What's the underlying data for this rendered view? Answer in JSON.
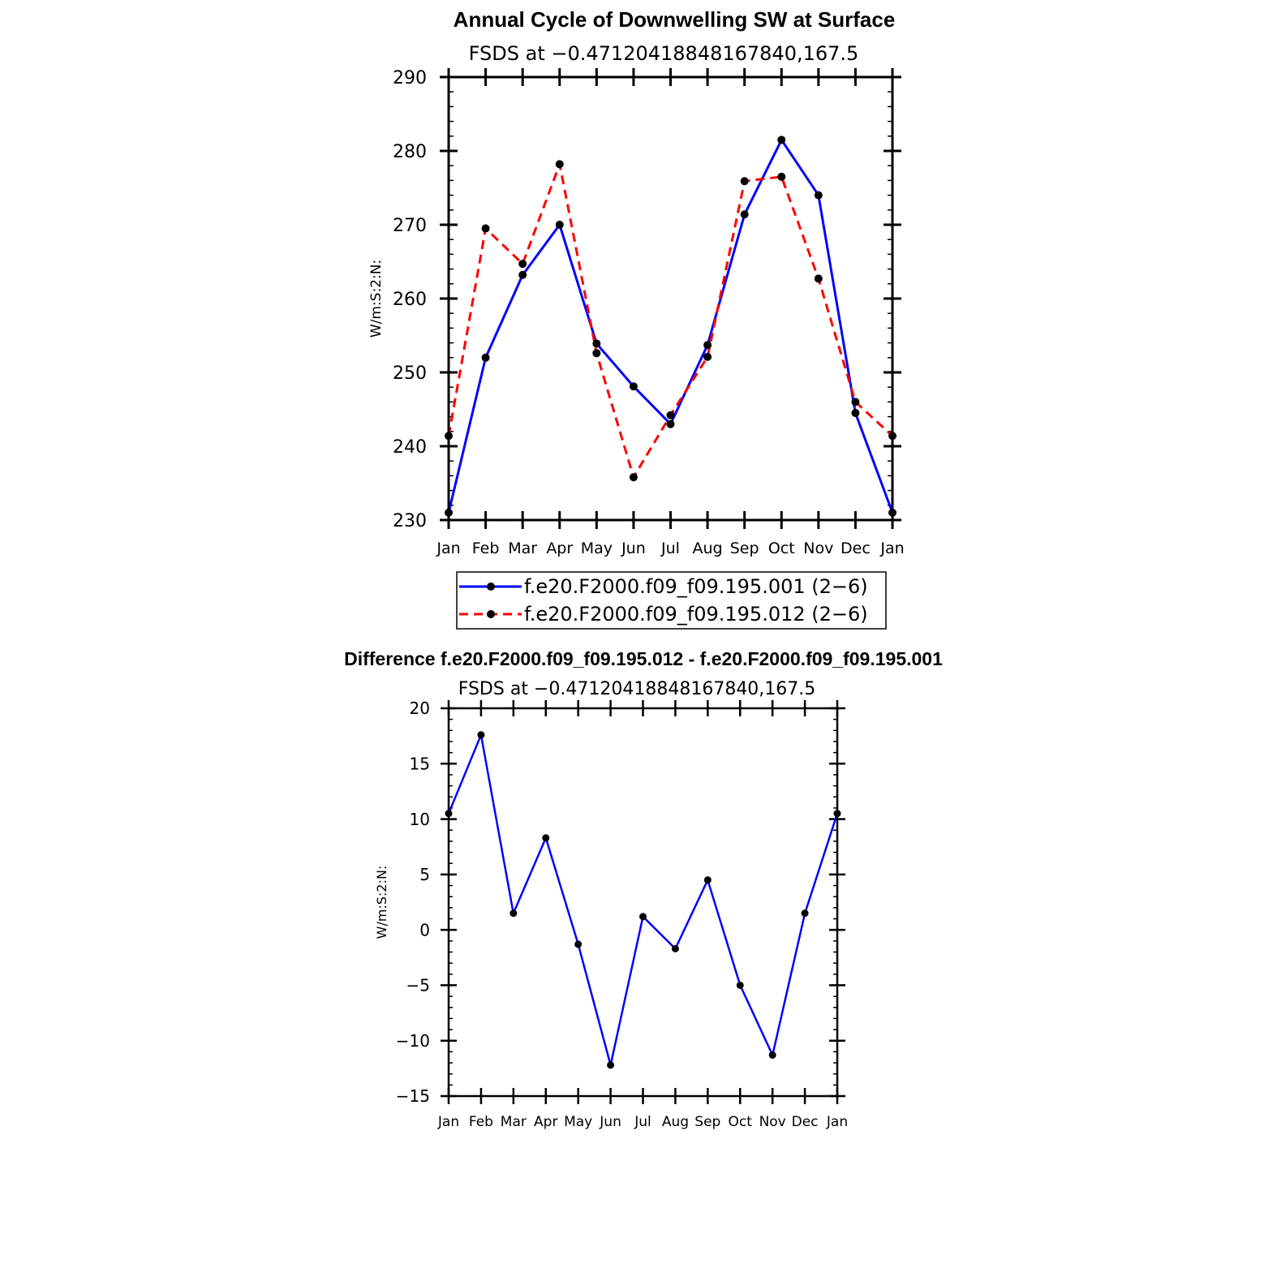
{
  "chart_data": [
    {
      "type": "line",
      "title": "Annual Cycle of Downwelling SW at Surface",
      "subtitle": "FSDS at −0.47120418848167840,167.5",
      "ylabel": "W/m:S:2:N:",
      "categories": [
        "Jan",
        "Feb",
        "Mar",
        "Apr",
        "May",
        "Jun",
        "Jul",
        "Aug",
        "Sep",
        "Oct",
        "Nov",
        "Dec",
        "Jan"
      ],
      "ylim": [
        230,
        290
      ],
      "yticks": [
        "230",
        "240",
        "250",
        "260",
        "270",
        "280",
        "290"
      ],
      "legend_position": "bottom",
      "series": [
        {
          "name": "f.e20.F2000.f09_f09.195.001 (2−6)",
          "color": "#0000ff",
          "dash": "solid",
          "values": [
            231.0,
            252.0,
            263.2,
            270.0,
            253.9,
            248.1,
            243.0,
            253.7,
            271.4,
            281.5,
            274.0,
            244.5,
            231.0
          ]
        },
        {
          "name": "f.e20.F2000.f09_f09.195.012 (2−6)",
          "color": "#ff0000",
          "dash": "dashed",
          "values": [
            241.4,
            269.5,
            264.7,
            278.2,
            252.6,
            235.8,
            244.2,
            252.1,
            275.9,
            276.5,
            262.7,
            246.0,
            241.4
          ]
        }
      ]
    },
    {
      "type": "line",
      "title": "Difference f.e20.F2000.f09_f09.195.012 - f.e20.F2000.f09_f09.195.001",
      "subtitle": "FSDS at −0.47120418848167840,167.5",
      "ylabel": "W/m:S:2:N:",
      "categories": [
        "Jan",
        "Feb",
        "Mar",
        "Apr",
        "May",
        "Jun",
        "Jul",
        "Aug",
        "Sep",
        "Oct",
        "Nov",
        "Dec",
        "Jan"
      ],
      "ylim": [
        -15,
        20
      ],
      "yticks": [
        "−15",
        "−10",
        "−5",
        "0",
        "5",
        "10",
        "15",
        "20"
      ],
      "series": [
        {
          "color": "#0000ff",
          "dash": "solid",
          "values": [
            10.5,
            17.6,
            1.5,
            8.3,
            -1.3,
            -12.2,
            1.2,
            -1.7,
            4.5,
            -5.0,
            -11.3,
            1.5,
            10.5
          ]
        }
      ]
    }
  ]
}
